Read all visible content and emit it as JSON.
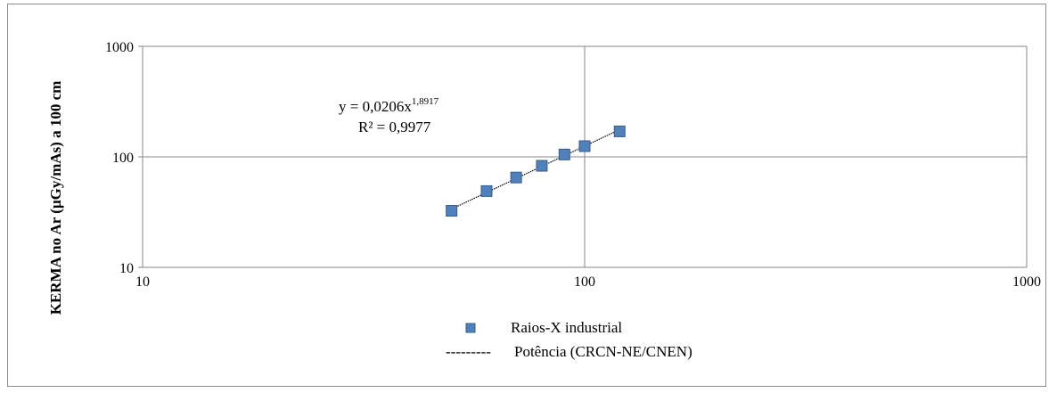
{
  "chart_data": {
    "type": "scatter",
    "xscale": "log",
    "yscale": "log",
    "xlim": [
      10,
      1000
    ],
    "ylim": [
      10,
      1000
    ],
    "xticks": [
      "10",
      "100",
      "1000"
    ],
    "yticks": [
      "10",
      "100",
      "1000"
    ],
    "ylabel": "KERMA no Ar (µGy/mAs) a 100 cm",
    "xlabel": "",
    "grid": true,
    "legend_position": "bottom",
    "series": [
      {
        "name": "Raios-X industrial",
        "color": "#4f81bd",
        "marker": "square",
        "x": [
          50,
          60,
          70,
          80,
          90,
          100,
          120
        ],
        "y": [
          32.5,
          49,
          65,
          83,
          105,
          125,
          170
        ]
      }
    ],
    "trendline": {
      "name": "Potência  (CRCN-NE/CNEN)",
      "type": "power",
      "coefficient": 0.0206,
      "exponent": 1.8917,
      "x_range": [
        50,
        120
      ],
      "color": "#000000",
      "style": "dotted"
    },
    "annotation": {
      "equation_base": "y = 0,0206x",
      "equation_exponent": "1,8917",
      "r_squared": "R² = 0,9977"
    },
    "legend_trend_prefix": "---------"
  }
}
